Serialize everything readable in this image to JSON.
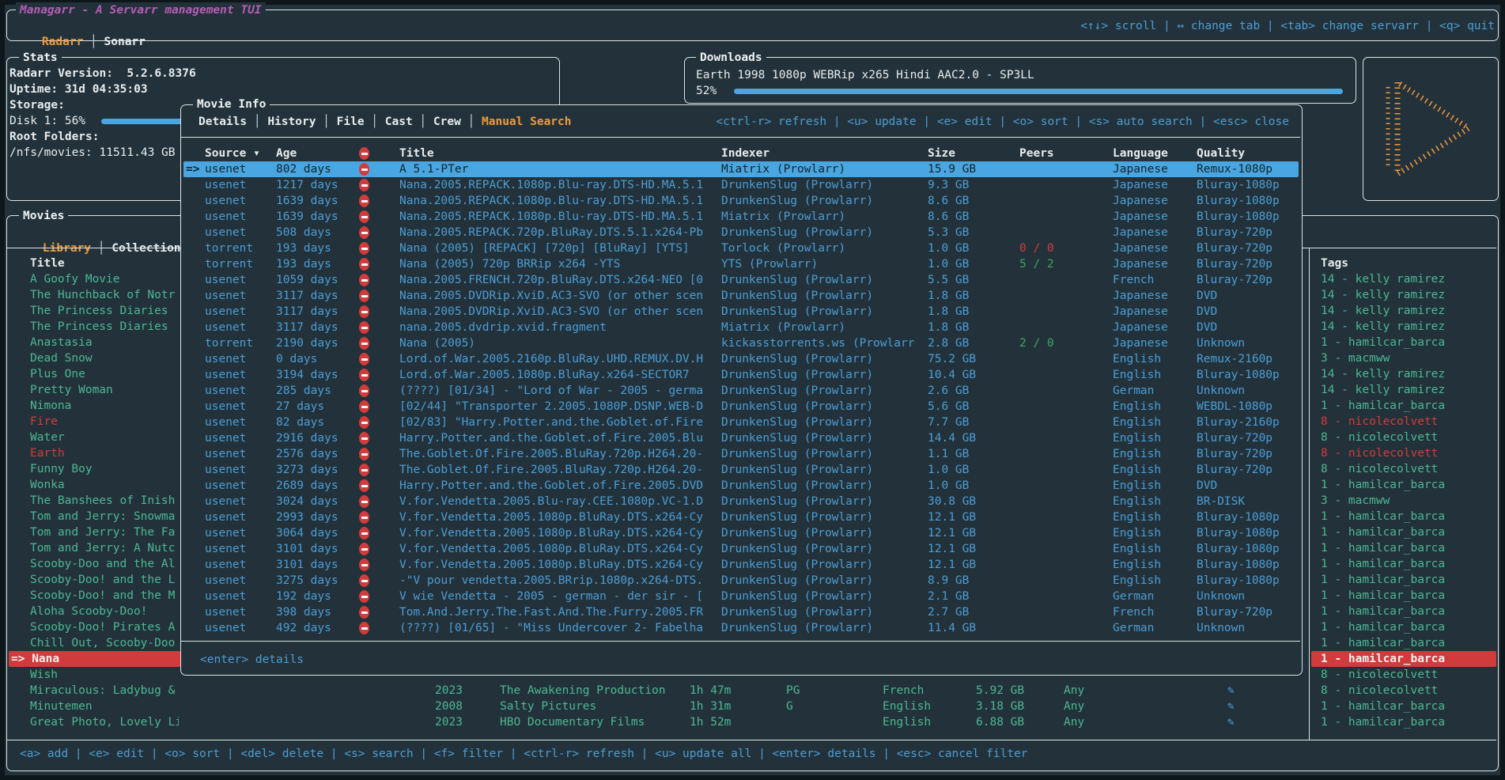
{
  "colors": {
    "background": "#23323a",
    "border": "#dbe3e6",
    "accent_blue": "#4b9dd6",
    "selection_blue": "#4aa6e0",
    "selection_red": "#d23b3b",
    "green": "#4cb794",
    "orange": "#ef9a3d",
    "magenta": "#b55cb5",
    "red": "#d23b3b",
    "peers_green": "#3ea45c"
  },
  "app": {
    "title": "Managarr - A Servarr management TUI",
    "tabs": [
      "Radarr",
      "Sonarr"
    ],
    "active_tab": "Radarr",
    "keybinds": "<↑↓> scroll | ↔ change tab | <tab> change servarr | <q> quit"
  },
  "stats": {
    "title": "Stats",
    "version": "Radarr Version:  5.2.6.8376",
    "uptime": "Uptime: 31d 04:35:03",
    "storage_label": "Storage:",
    "disk": "Disk 1: 56%",
    "disk_percent": 56,
    "root_folders_label": "Root Folders:",
    "root_folder": "/nfs/movies: 11511.43 GB"
  },
  "downloads": {
    "title": "Downloads",
    "item": "Earth 1998 1080p WEBRip x265 Hindi AAC2.0 - SP3LL",
    "percent_label": "52%",
    "percent": 52
  },
  "logo": {
    "icon": "play-triangle"
  },
  "movies": {
    "title": "Movies",
    "tabs": [
      "Library",
      "Collections"
    ],
    "active_tab": "Library",
    "title_header": "Title",
    "tags_header": "Tags",
    "keybinds": "<a> add | <e> edit | <o> sort | <del> delete | <s> search | <f> filter | <ctrl-r> refresh | <u> update all | <enter> details | <esc> cancel filter",
    "rows": [
      {
        "title": "A Goofy Movie",
        "tag": "14 - kelly ramirez"
      },
      {
        "title": "The Hunchback of Notr",
        "tag": "14 - kelly ramirez"
      },
      {
        "title": "The Princess Diaries",
        "tag": "14 - kelly ramirez"
      },
      {
        "title": "The Princess Diaries",
        "tag": "14 - kelly ramirez"
      },
      {
        "title": "Anastasia",
        "tag": "1 - hamilcar_barca"
      },
      {
        "title": "Dead Snow",
        "tag": "3 - macmww"
      },
      {
        "title": "Plus One",
        "tag": "14 - kelly ramirez"
      },
      {
        "title": "Pretty Woman",
        "tag": "14 - kelly ramirez"
      },
      {
        "title": "Nimona",
        "tag": "1 - hamilcar_barca"
      },
      {
        "title": "Fire",
        "title_color": "red",
        "tag": "8 - nicolecolvett",
        "tag_color": "red"
      },
      {
        "title": "Water",
        "tag": "8 - nicolecolvett"
      },
      {
        "title": "Earth",
        "title_color": "red",
        "tag": "8 - nicolecolvett",
        "tag_color": "red"
      },
      {
        "title": "Funny Boy",
        "tag": "8 - nicolecolvett"
      },
      {
        "title": "Wonka",
        "tag": "1 - hamilcar_barca"
      },
      {
        "title": "The Banshees of Inish",
        "tag": "3 - macmww"
      },
      {
        "title": "Tom and Jerry: Snowma",
        "tag": "1 - hamilcar_barca"
      },
      {
        "title": "Tom and Jerry: The Fa",
        "tag": "1 - hamilcar_barca"
      },
      {
        "title": "Tom and Jerry: A Nutc",
        "tag": "1 - hamilcar_barca"
      },
      {
        "title": "Scooby-Doo and the Al",
        "tag": "1 - hamilcar_barca"
      },
      {
        "title": "Scooby-Doo! and the L",
        "tag": "1 - hamilcar_barca"
      },
      {
        "title": "Scooby-Doo! and the M",
        "tag": "1 - hamilcar_barca"
      },
      {
        "title": "Aloha Scooby-Doo!",
        "tag": "1 - hamilcar_barca"
      },
      {
        "title": "Scooby-Doo! Pirates A",
        "tag": "1 - hamilcar_barca"
      },
      {
        "title": "Chill Out, Scooby-Doo",
        "tag": "1 - hamilcar_barca"
      },
      {
        "title": "Nana",
        "selected": true,
        "tag": "1 - hamilcar_barca"
      },
      {
        "title": "Wish",
        "tag": "8 - nicolecolvett"
      },
      {
        "title": "Miraculous: Ladybug & Cat Noir, The Movie",
        "year": "2023",
        "studio": "The Awakening Production",
        "runtime": "1h 47m",
        "rating": "PG",
        "language": "French",
        "size": "5.92 GB",
        "quality": "Any",
        "icon": true,
        "tag": "8 - nicolecolvett"
      },
      {
        "title": "Minutemen",
        "year": "2008",
        "studio": "Salty Pictures",
        "runtime": "1h 31m",
        "rating": "G",
        "language": "English",
        "size": "3.18 GB",
        "quality": "Any",
        "icon": true,
        "tag": "1 - hamilcar_barca"
      },
      {
        "title": "Great Photo, Lovely Life",
        "year": "2023",
        "studio": "HBO Documentary Films",
        "runtime": "1h 52m",
        "rating": "",
        "language": "English",
        "size": "6.88 GB",
        "quality": "Any",
        "icon": true,
        "tag": "1 - hamilcar_barca"
      }
    ]
  },
  "modal": {
    "title": "Movie Info",
    "tabs": [
      "Details",
      "History",
      "File",
      "Cast",
      "Crew",
      "Manual Search"
    ],
    "active_tab": "Manual Search",
    "keybinds": "<ctrl-r> refresh | <u> update | <e> edit | <o> sort | <s> auto search | <esc> close",
    "columns": [
      "Source",
      "Age",
      "Title",
      "Indexer",
      "Size",
      "Peers",
      "Language",
      "Quality"
    ],
    "sort_indicator": "▾",
    "footer": "<enter> details",
    "releases": [
      {
        "source": "usenet",
        "age": "802 days",
        "title": "A 5.1-PTer",
        "indexer": "Miatrix (Prowlarr)",
        "size": "15.9 GB",
        "peers": "",
        "language": "Japanese",
        "quality": "Remux-1080p",
        "selected": true
      },
      {
        "source": "usenet",
        "age": "1217 days",
        "title": "Nana.2005.REPACK.1080p.Blu-ray.DTS-HD.MA.5.1",
        "indexer": "DrunkenSlug (Prowlarr)",
        "size": "9.3 GB",
        "peers": "",
        "language": "Japanese",
        "quality": "Bluray-1080p"
      },
      {
        "source": "usenet",
        "age": "1639 days",
        "title": "Nana.2005.REPACK.1080p.Blu-ray.DTS-HD.MA.5.1",
        "indexer": "DrunkenSlug (Prowlarr)",
        "size": "8.6 GB",
        "peers": "",
        "language": "Japanese",
        "quality": "Bluray-1080p"
      },
      {
        "source": "usenet",
        "age": "1639 days",
        "title": "Nana.2005.REPACK.1080p.Blu-ray.DTS-HD.MA.5.1",
        "indexer": "Miatrix (Prowlarr)",
        "size": "8.6 GB",
        "peers": "",
        "language": "Japanese",
        "quality": "Bluray-1080p"
      },
      {
        "source": "usenet",
        "age": "508 days",
        "title": "Nana.2005.REPACK.720p.BluRay.DTS.5.1.x264-Pb",
        "indexer": "DrunkenSlug (Prowlarr)",
        "size": "5.3 GB",
        "peers": "",
        "language": "Japanese",
        "quality": "Bluray-720p"
      },
      {
        "source": "torrent",
        "age": "193 days",
        "title": "Nana (2005) [REPACK] [720p] [BluRay] [YTS]",
        "indexer": "Torlock (Prowlarr)",
        "size": "1.0 GB",
        "peers": "0 / 0",
        "peers_color": "red",
        "language": "Japanese",
        "quality": "Bluray-720p"
      },
      {
        "source": "torrent",
        "age": "193 days",
        "title": "Nana (2005) 720p BRRip x264 -YTS",
        "indexer": "YTS (Prowlarr)",
        "size": "1.0 GB",
        "peers": "5 / 2",
        "peers_color": "green",
        "language": "Japanese",
        "quality": "Bluray-720p"
      },
      {
        "source": "usenet",
        "age": "1059 days",
        "title": "Nana.2005.FRENCH.720p.BluRay.DTS.x264-NEO [0",
        "indexer": "DrunkenSlug (Prowlarr)",
        "size": "5.5 GB",
        "peers": "",
        "language": "French",
        "quality": "Bluray-720p"
      },
      {
        "source": "usenet",
        "age": "3117 days",
        "title": "Nana.2005.DVDRip.XviD.AC3-SVO (or other scen",
        "indexer": "DrunkenSlug (Prowlarr)",
        "size": "1.8 GB",
        "peers": "",
        "language": "Japanese",
        "quality": "DVD"
      },
      {
        "source": "usenet",
        "age": "3117 days",
        "title": "Nana.2005.DVDRip.XviD.AC3-SVO (or other scen",
        "indexer": "DrunkenSlug (Prowlarr)",
        "size": "1.8 GB",
        "peers": "",
        "language": "Japanese",
        "quality": "DVD"
      },
      {
        "source": "usenet",
        "age": "3117 days",
        "title": "nana.2005.dvdrip.xvid.fragment",
        "indexer": "Miatrix (Prowlarr)",
        "size": "1.8 GB",
        "peers": "",
        "language": "Japanese",
        "quality": "DVD"
      },
      {
        "source": "torrent",
        "age": "2190 days",
        "title": "Nana (2005)",
        "indexer": "kickasstorrents.ws (Prowlarr",
        "size": "2.8 GB",
        "peers": "2 / 0",
        "peers_color": "green",
        "language": "Japanese",
        "quality": "Unknown"
      },
      {
        "source": "usenet",
        "age": "0 days",
        "title": "Lord.of.War.2005.2160p.BluRay.UHD.REMUX.DV.H",
        "indexer": "DrunkenSlug (Prowlarr)",
        "size": "75.2 GB",
        "peers": "",
        "language": "English",
        "quality": "Remux-2160p"
      },
      {
        "source": "usenet",
        "age": "3194 days",
        "title": "Lord.of.War.2005.1080p.BluRay.x264-SECTOR7",
        "indexer": "DrunkenSlug (Prowlarr)",
        "size": "10.4 GB",
        "peers": "",
        "language": "English",
        "quality": "Bluray-1080p"
      },
      {
        "source": "usenet",
        "age": "285 days",
        "title": "(????) [01/34] - \"Lord of War - 2005 - germa",
        "indexer": "DrunkenSlug (Prowlarr)",
        "size": "2.6 GB",
        "peers": "",
        "language": "German",
        "quality": "Unknown"
      },
      {
        "source": "usenet",
        "age": "27 days",
        "title": "[02/44] \"Transporter 2.2005.1080P.DSNP.WEB-D",
        "indexer": "DrunkenSlug (Prowlarr)",
        "size": "5.6 GB",
        "peers": "",
        "language": "English",
        "quality": "WEBDL-1080p"
      },
      {
        "source": "usenet",
        "age": "82 days",
        "title": "[02/83] \"Harry.Potter.and.the.Goblet.of.Fire",
        "indexer": "DrunkenSlug (Prowlarr)",
        "size": "7.7 GB",
        "peers": "",
        "language": "English",
        "quality": "Bluray-2160p"
      },
      {
        "source": "usenet",
        "age": "2916 days",
        "title": "Harry.Potter.and.the.Goblet.of.Fire.2005.Blu",
        "indexer": "DrunkenSlug (Prowlarr)",
        "size": "14.4 GB",
        "peers": "",
        "language": "English",
        "quality": "Bluray-720p"
      },
      {
        "source": "usenet",
        "age": "2576 days",
        "title": "The.Goblet.Of.Fire.2005.BluRay.720p.H264.20-",
        "indexer": "DrunkenSlug (Prowlarr)",
        "size": "1.1 GB",
        "peers": "",
        "language": "English",
        "quality": "Bluray-720p"
      },
      {
        "source": "usenet",
        "age": "3273 days",
        "title": "The.Goblet.Of.Fire.2005.BluRay.720p.H264.20-",
        "indexer": "DrunkenSlug (Prowlarr)",
        "size": "1.0 GB",
        "peers": "",
        "language": "English",
        "quality": "Bluray-720p"
      },
      {
        "source": "usenet",
        "age": "2689 days",
        "title": "Harry.Potter.and.the.Goblet.of.Fire.2005.DVD",
        "indexer": "DrunkenSlug (Prowlarr)",
        "size": "1.0 GB",
        "peers": "",
        "language": "English",
        "quality": "DVD"
      },
      {
        "source": "usenet",
        "age": "3024 days",
        "title": "V.for.Vendetta.2005.Blu-ray.CEE.1080p.VC-1.D",
        "indexer": "DrunkenSlug (Prowlarr)",
        "size": "30.8 GB",
        "peers": "",
        "language": "English",
        "quality": "BR-DISK"
      },
      {
        "source": "usenet",
        "age": "2993 days",
        "title": "V.for.Vendetta.2005.1080p.BluRay.DTS.x264-Cy",
        "indexer": "DrunkenSlug (Prowlarr)",
        "size": "12.1 GB",
        "peers": "",
        "language": "English",
        "quality": "Bluray-1080p"
      },
      {
        "source": "usenet",
        "age": "3064 days",
        "title": "V.for.Vendetta.2005.1080p.BluRay.DTS.x264-Cy",
        "indexer": "DrunkenSlug (Prowlarr)",
        "size": "12.1 GB",
        "peers": "",
        "language": "English",
        "quality": "Bluray-1080p"
      },
      {
        "source": "usenet",
        "age": "3101 days",
        "title": "V.for.Vendetta.2005.1080p.BluRay.DTS.x264-Cy",
        "indexer": "DrunkenSlug (Prowlarr)",
        "size": "12.1 GB",
        "peers": "",
        "language": "English",
        "quality": "Bluray-1080p"
      },
      {
        "source": "usenet",
        "age": "3101 days",
        "title": "V.for.Vendetta.2005.1080p.BluRay.DTS.x264-Cy",
        "indexer": "DrunkenSlug (Prowlarr)",
        "size": "12.1 GB",
        "peers": "",
        "language": "English",
        "quality": "Bluray-1080p"
      },
      {
        "source": "usenet",
        "age": "3275 days",
        "title": "-\"V pour vendetta.2005.BRrip.1080p.x264-DTS.",
        "indexer": "DrunkenSlug (Prowlarr)",
        "size": "8.9 GB",
        "peers": "",
        "language": "English",
        "quality": "Bluray-1080p"
      },
      {
        "source": "usenet",
        "age": "192 days",
        "title": "V wie Vendetta - 2005 - german - der sir - [",
        "indexer": "DrunkenSlug (Prowlarr)",
        "size": "2.1 GB",
        "peers": "",
        "language": "German",
        "quality": "Unknown"
      },
      {
        "source": "usenet",
        "age": "398 days",
        "title": "Tom.And.Jerry.The.Fast.And.The.Furry.2005.FR",
        "indexer": "DrunkenSlug (Prowlarr)",
        "size": "2.7 GB",
        "peers": "",
        "language": "French",
        "quality": "Bluray-720p"
      },
      {
        "source": "usenet",
        "age": "492 days",
        "title": "(????) [01/65] - \"Miss Undercover 2- Fabelha",
        "indexer": "DrunkenSlug (Prowlarr)",
        "size": "11.4 GB",
        "peers": "",
        "language": "German",
        "quality": "Unknown"
      }
    ]
  }
}
